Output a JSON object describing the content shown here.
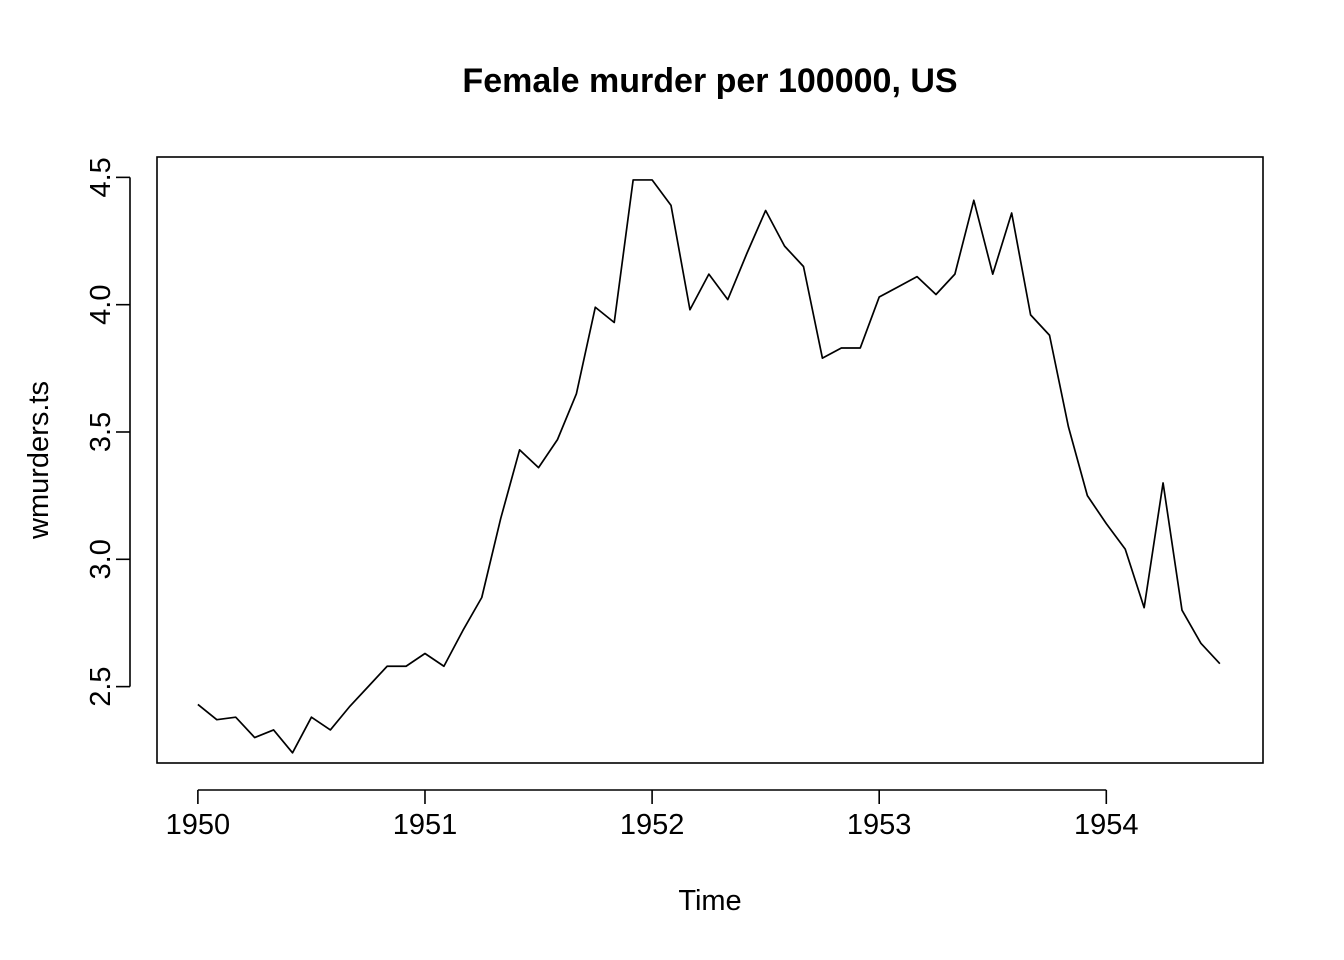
{
  "chart_data": {
    "type": "line",
    "title": "Female murder per 100000, US",
    "xlabel": "Time",
    "ylabel": "wmurders.ts",
    "xlim": [
      1949.82,
      1954.69
    ],
    "ylim": [
      2.2,
      4.58
    ],
    "x_ticks": [
      1950,
      1951,
      1952,
      1953,
      1954
    ],
    "x_tick_labels": [
      "1950",
      "1951",
      "1952",
      "1953",
      "1954"
    ],
    "y_ticks": [
      2.5,
      3.0,
      3.5,
      4.0,
      4.5
    ],
    "y_tick_labels": [
      "2.5",
      "3.0",
      "3.5",
      "4.0",
      "4.5"
    ],
    "grid": false,
    "line_color": "#000000",
    "x_start": 1950,
    "x_step": 0.0833333,
    "values": [
      2.43,
      2.37,
      2.38,
      2.3,
      2.33,
      2.24,
      2.38,
      2.33,
      2.42,
      2.5,
      2.58,
      2.58,
      2.63,
      2.58,
      2.72,
      2.85,
      3.16,
      3.43,
      3.36,
      3.47,
      3.65,
      3.99,
      3.93,
      4.49,
      4.49,
      4.39,
      3.98,
      4.12,
      4.02,
      4.2,
      4.37,
      4.23,
      4.15,
      3.79,
      3.83,
      3.83,
      4.03,
      4.07,
      4.11,
      4.04,
      4.12,
      4.41,
      4.12,
      4.36,
      3.96,
      3.88,
      3.52,
      3.25,
      3.14,
      3.04,
      2.81,
      3.3,
      2.8,
      2.67,
      2.59
    ]
  }
}
